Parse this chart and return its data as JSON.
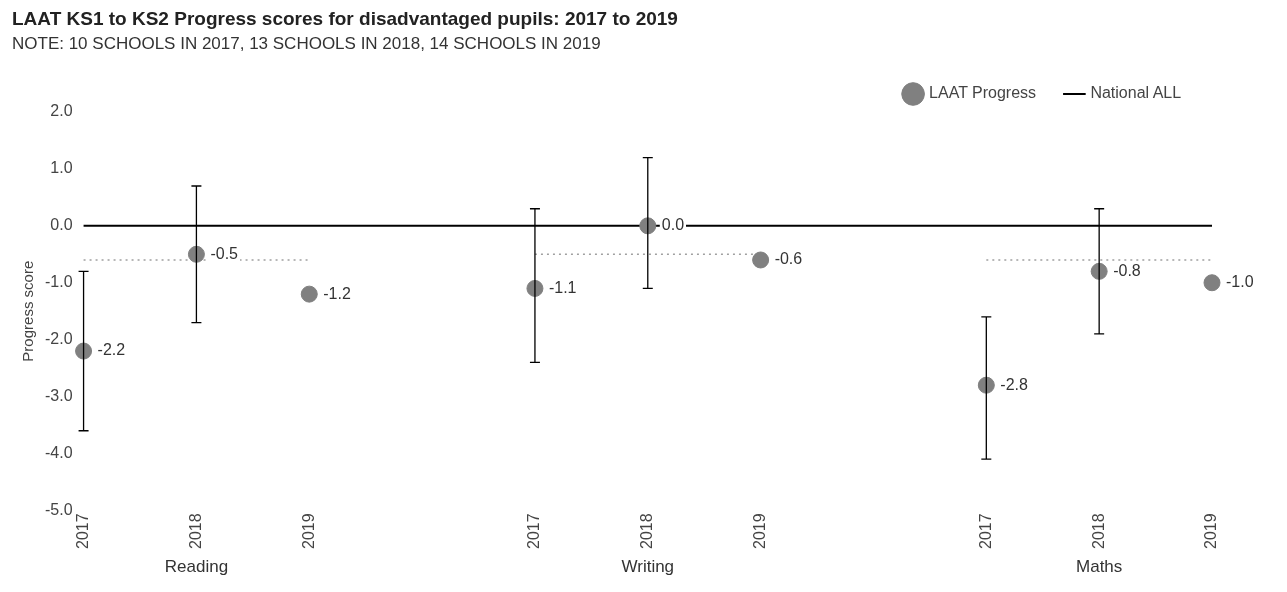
{
  "chart_data": {
    "type": "scatter",
    "title": "LAAT KS1 to KS2 Progress scores for disadvantaged pupils: 2017 to 2019",
    "subtitle": "NOTE: 10 SCHOOLS IN 2017, 13 SCHOOLS IN 2018, 14 SCHOOLS IN 2019",
    "ylabel": "Progress score",
    "categories": [
      "2017",
      "2018",
      "2019",
      null,
      "2017",
      "2018",
      "2019",
      null,
      "2017",
      "2018",
      "2019"
    ],
    "series": [
      {
        "name": "LAAT Progress",
        "color": "#808080",
        "marker": "circle",
        "values": [
          -2.2,
          -0.5,
          -1.2,
          null,
          -1.1,
          0.0,
          -0.6,
          null,
          -2.8,
          -0.8,
          -1.0
        ],
        "value_labels": [
          "-2.2",
          "-0.5",
          "-1.2",
          null,
          "-1.1",
          "0.0",
          "-0.6",
          null,
          "-2.8",
          "-0.8",
          "-1.0"
        ],
        "errors": [
          [
            -3.6,
            -0.8
          ],
          [
            -1.7,
            0.7
          ],
          null,
          null,
          [
            -2.4,
            0.3
          ],
          [
            -1.1,
            1.2
          ],
          null,
          null,
          [
            -4.1,
            -1.6
          ],
          [
            -1.9,
            0.3
          ],
          null
        ]
      },
      {
        "name": "National ALL",
        "type": "line",
        "color": "#000000",
        "line_style": "solid",
        "values": [
          0,
          0,
          0,
          0,
          0,
          0,
          0,
          0,
          0,
          0,
          0
        ]
      },
      {
        "type": "line",
        "color": "#a0a0a0",
        "line_style": "dotted",
        "values": [
          -0.6,
          -0.6,
          -0.6,
          null,
          null,
          null,
          null,
          null,
          null,
          null,
          null
        ]
      },
      {
        "type": "line",
        "color": "#a0a0a0",
        "line_style": "dotted",
        "values": [
          null,
          null,
          null,
          null,
          -0.5,
          -0.5,
          -0.5,
          null,
          null,
          null,
          null
        ]
      },
      {
        "type": "line",
        "color": "#a0a0a0",
        "line_style": "dotted",
        "values": [
          null,
          null,
          null,
          null,
          null,
          null,
          null,
          null,
          -0.6,
          -0.6,
          -0.6
        ]
      }
    ],
    "annotations": [
      "Reading",
      "Writing",
      "Maths"
    ],
    "ylim": [
      -5,
      2
    ],
    "yticks": [
      {
        "value": 2,
        "label": "2.0"
      },
      {
        "value": 1,
        "label": "1.0"
      },
      {
        "value": 0,
        "label": "0.0"
      },
      {
        "value": -1,
        "label": "-1.0"
      },
      {
        "value": -2,
        "label": "-2.0"
      },
      {
        "value": -3,
        "label": "-3.0"
      },
      {
        "value": -4,
        "label": "-4.0"
      },
      {
        "value": -5,
        "label": "-5.0"
      }
    ],
    "grid": false,
    "legend": "top right"
  }
}
